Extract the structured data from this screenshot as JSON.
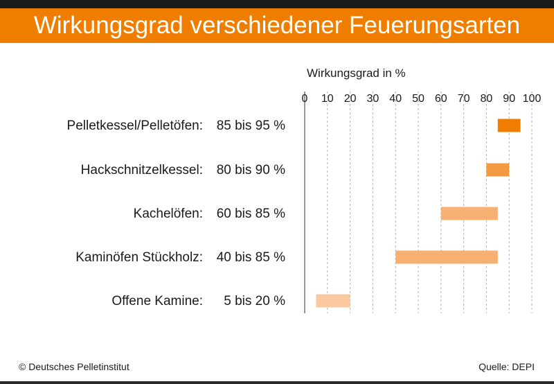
{
  "header": {
    "title": "Wirkungsgrad verschiedener Feuerungsarten"
  },
  "colors": {
    "accent": "#ef7d00",
    "bar_shades": [
      "#ef7d00",
      "#f39a40",
      "#f6b072",
      "#f6b072",
      "#fac9a0"
    ]
  },
  "chart_data": {
    "type": "bar",
    "orientation": "horizontal",
    "range_bars": true,
    "xlabel": "Wirkungsgrad in %",
    "xlim": [
      0,
      100
    ],
    "ticks": [
      "0",
      "10",
      "20",
      "30",
      "40",
      "50",
      "60",
      "70",
      "80",
      "90",
      "100"
    ],
    "grid": true,
    "categories": [
      {
        "name": "Pelletkessel/Pelletöfen:",
        "range_label": "85 bis 95 %",
        "low": 85,
        "high": 95
      },
      {
        "name": "Hackschnitzelkessel:",
        "range_label": "80 bis 90 %",
        "low": 80,
        "high": 90
      },
      {
        "name": "Kachelöfen:",
        "range_label": "60 bis 85 %",
        "low": 60,
        "high": 85
      },
      {
        "name": "Kaminöfen Stückholz:",
        "range_label": "40 bis 85 %",
        "low": 40,
        "high": 85
      },
      {
        "name": "Offene Kamine:",
        "range_label": "5 bis 20 %",
        "low": 5,
        "high": 20
      }
    ]
  },
  "footer": {
    "copyright": "© Deutsches Pelletinstitut",
    "source": "Quelle: DEPI"
  }
}
